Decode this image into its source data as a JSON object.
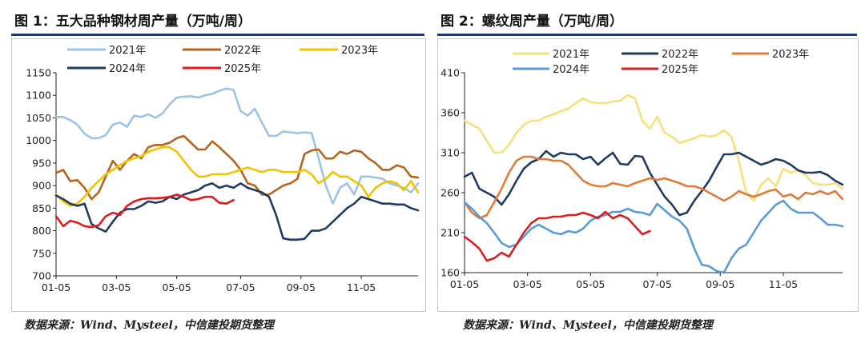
{
  "charts": [
    {
      "title": "图 1：五大品种钢材周产量（万吨/周）",
      "source": "数据来源：Wind、Mysteel，中信建投期货整理"
    },
    {
      "title": "图 2：螺纹周产量（万吨/周）",
      "source": "数据来源：Wind、Mysteel，中信建投期货整理"
    }
  ],
  "chart_data": [
    {
      "type": "line",
      "title": "图 1：五大品种钢材周产量（万吨/周）",
      "xlabel": "",
      "ylabel": "",
      "x_ticks": [
        "01-05",
        "03-05",
        "05-05",
        "07-05",
        "09-05",
        "11-05"
      ],
      "y_ticks": [
        700,
        750,
        800,
        850,
        900,
        950,
        1000,
        1050,
        1100,
        1150
      ],
      "ylim": [
        700,
        1150
      ],
      "x_range_weeks": [
        1,
        52
      ],
      "grid": false,
      "legend_position": "top",
      "series": [
        {
          "name": "2021年",
          "color": "#9dc3e6",
          "x": [
            1,
            2,
            3,
            4,
            5,
            6,
            7,
            8,
            9,
            10,
            11,
            12,
            13,
            14,
            15,
            16,
            17,
            18,
            19,
            20,
            21,
            22,
            23,
            24,
            25,
            26,
            27,
            28,
            29,
            30,
            31,
            32,
            33,
            34,
            35,
            36,
            37,
            38,
            39,
            40,
            41,
            42,
            43,
            44,
            45,
            46,
            47,
            48,
            49,
            50,
            51,
            52
          ],
          "values": [
            1052,
            1052,
            1045,
            1035,
            1015,
            1005,
            1005,
            1012,
            1035,
            1040,
            1030,
            1055,
            1052,
            1058,
            1050,
            1060,
            1080,
            1095,
            1097,
            1098,
            1095,
            1100,
            1103,
            1110,
            1115,
            1112,
            1065,
            1055,
            1070,
            1040,
            1010,
            1010,
            1020,
            1018,
            1016,
            1018,
            1016,
            960,
            900,
            860,
            895,
            905,
            880,
            920,
            920,
            918,
            915,
            905,
            900,
            895,
            885,
            905
          ]
        },
        {
          "name": "2022年",
          "color": "#b5651d",
          "x": [
            1,
            2,
            3,
            4,
            5,
            6,
            7,
            8,
            9,
            10,
            11,
            12,
            13,
            14,
            15,
            16,
            17,
            18,
            19,
            20,
            21,
            22,
            23,
            24,
            25,
            26,
            27,
            28,
            29,
            30,
            31,
            32,
            33,
            34,
            35,
            36,
            37,
            38,
            39,
            40,
            41,
            42,
            43,
            44,
            45,
            46,
            47,
            48,
            49,
            50,
            51,
            52
          ],
          "values": [
            928,
            935,
            910,
            912,
            895,
            870,
            885,
            920,
            955,
            935,
            955,
            970,
            960,
            985,
            990,
            990,
            995,
            1005,
            1010,
            995,
            980,
            980,
            998,
            985,
            970,
            955,
            935,
            905,
            900,
            880,
            880,
            890,
            900,
            905,
            915,
            970,
            978,
            980,
            960,
            960,
            975,
            970,
            978,
            975,
            960,
            950,
            935,
            935,
            945,
            940,
            920,
            918
          ]
        },
        {
          "name": "2023年",
          "color": "#f2c300",
          "x": [
            1,
            2,
            3,
            4,
            5,
            6,
            7,
            8,
            9,
            10,
            11,
            12,
            13,
            14,
            15,
            16,
            17,
            18,
            19,
            20,
            21,
            22,
            23,
            24,
            25,
            26,
            27,
            28,
            29,
            30,
            31,
            32,
            33,
            34,
            35,
            36,
            37,
            38,
            39,
            40,
            41,
            42,
            43,
            44,
            45,
            46,
            47,
            48,
            49,
            50,
            51,
            52
          ],
          "values": [
            880,
            865,
            855,
            860,
            875,
            895,
            910,
            925,
            935,
            945,
            955,
            960,
            965,
            975,
            980,
            985,
            985,
            975,
            955,
            935,
            920,
            920,
            925,
            925,
            925,
            930,
            935,
            940,
            935,
            930,
            935,
            935,
            930,
            930,
            930,
            935,
            925,
            905,
            915,
            930,
            920,
            920,
            910,
            900,
            875,
            895,
            905,
            910,
            905,
            890,
            910,
            885
          ]
        },
        {
          "name": "2024年",
          "color": "#1f3b63",
          "x": [
            1,
            2,
            3,
            4,
            5,
            6,
            7,
            8,
            9,
            10,
            11,
            12,
            13,
            14,
            15,
            16,
            17,
            18,
            19,
            20,
            21,
            22,
            23,
            24,
            25,
            26,
            27,
            28,
            29,
            30,
            31,
            32,
            33,
            34,
            35,
            36,
            37,
            38,
            39,
            40,
            41,
            42,
            43,
            44,
            45,
            46,
            47,
            48,
            49,
            50,
            51,
            52
          ],
          "values": [
            878,
            870,
            860,
            855,
            860,
            815,
            805,
            798,
            820,
            840,
            848,
            848,
            855,
            865,
            862,
            865,
            875,
            870,
            880,
            885,
            890,
            900,
            905,
            895,
            900,
            895,
            905,
            895,
            890,
            885,
            875,
            835,
            783,
            780,
            780,
            782,
            800,
            800,
            805,
            820,
            835,
            850,
            860,
            875,
            870,
            865,
            860,
            860,
            858,
            858,
            850,
            845
          ]
        },
        {
          "name": "2025年",
          "color": "#e0191b",
          "x": [
            1,
            2,
            3,
            4,
            5,
            6,
            7,
            8,
            9,
            10,
            11,
            12,
            13,
            14,
            15,
            16,
            17,
            18,
            19,
            20,
            21,
            22,
            23,
            24,
            25,
            26
          ],
          "values": [
            832,
            810,
            822,
            818,
            810,
            808,
            812,
            832,
            840,
            835,
            855,
            865,
            870,
            872,
            872,
            873,
            875,
            880,
            875,
            868,
            870,
            875,
            875,
            862,
            860,
            868
          ]
        }
      ]
    },
    {
      "type": "line",
      "title": "图 2：螺纹周产量（万吨/周）",
      "xlabel": "",
      "ylabel": "",
      "x_ticks": [
        "01-05",
        "03-05",
        "05-05",
        "07-05",
        "09-05",
        "11-05"
      ],
      "y_ticks": [
        160,
        210,
        260,
        310,
        360,
        410
      ],
      "ylim": [
        160,
        410
      ],
      "x_range_weeks": [
        1,
        52
      ],
      "grid": false,
      "legend_position": "top",
      "series": [
        {
          "name": "2021年",
          "color": "#f5e07a",
          "x": [
            1,
            2,
            3,
            4,
            5,
            6,
            7,
            8,
            9,
            10,
            11,
            12,
            13,
            14,
            15,
            16,
            17,
            18,
            19,
            20,
            21,
            22,
            23,
            24,
            25,
            26,
            27,
            28,
            29,
            30,
            31,
            32,
            33,
            34,
            35,
            36,
            37,
            38,
            39,
            40,
            41,
            42,
            43,
            44,
            45,
            46,
            47,
            48,
            49,
            50,
            51,
            52
          ],
          "values": [
            350,
            345,
            340,
            325,
            310,
            310,
            320,
            335,
            345,
            350,
            350,
            355,
            358,
            362,
            365,
            372,
            378,
            373,
            372,
            372,
            374,
            375,
            382,
            378,
            350,
            340,
            355,
            335,
            330,
            322,
            325,
            328,
            332,
            330,
            332,
            338,
            330,
            300,
            260,
            250,
            270,
            278,
            268,
            290,
            285,
            288,
            282,
            272,
            270,
            270,
            272,
            265
          ]
        },
        {
          "name": "2022年",
          "color": "#1f3b63",
          "x": [
            1,
            2,
            3,
            4,
            5,
            6,
            7,
            8,
            9,
            10,
            11,
            12,
            13,
            14,
            15,
            16,
            17,
            18,
            19,
            20,
            21,
            22,
            23,
            24,
            25,
            26,
            27,
            28,
            29,
            30,
            31,
            32,
            33,
            34,
            35,
            36,
            37,
            38,
            39,
            40,
            41,
            42,
            43,
            44,
            45,
            46,
            47,
            48,
            49,
            50,
            51,
            52
          ],
          "values": [
            280,
            285,
            265,
            260,
            255,
            245,
            258,
            275,
            290,
            298,
            302,
            312,
            305,
            310,
            308,
            308,
            302,
            305,
            295,
            303,
            310,
            296,
            295,
            306,
            305,
            285,
            270,
            255,
            245,
            232,
            235,
            250,
            262,
            275,
            292,
            308,
            308,
            310,
            305,
            300,
            295,
            298,
            302,
            300,
            295,
            288,
            285,
            285,
            286,
            282,
            275,
            270
          ]
        },
        {
          "name": "2023年",
          "color": "#e07b39",
          "x": [
            1,
            2,
            3,
            4,
            5,
            6,
            7,
            8,
            9,
            10,
            11,
            12,
            13,
            14,
            15,
            16,
            17,
            18,
            19,
            20,
            21,
            22,
            23,
            24,
            25,
            26,
            27,
            28,
            29,
            30,
            31,
            32,
            33,
            34,
            35,
            36,
            37,
            38,
            39,
            40,
            41,
            42,
            43,
            44,
            45,
            46,
            47,
            48,
            49,
            50,
            51,
            52
          ],
          "values": [
            248,
            235,
            228,
            232,
            248,
            265,
            285,
            300,
            305,
            305,
            302,
            302,
            300,
            300,
            295,
            285,
            275,
            270,
            268,
            268,
            272,
            270,
            268,
            272,
            275,
            278,
            276,
            278,
            275,
            272,
            268,
            268,
            265,
            260,
            255,
            250,
            255,
            262,
            258,
            255,
            258,
            262,
            264,
            255,
            258,
            252,
            260,
            258,
            262,
            258,
            262,
            252
          ]
        },
        {
          "name": "2024年",
          "color": "#5b9bd5",
          "x": [
            1,
            2,
            3,
            4,
            5,
            6,
            7,
            8,
            9,
            10,
            11,
            12,
            13,
            14,
            15,
            16,
            17,
            18,
            19,
            20,
            21,
            22,
            23,
            24,
            25,
            26,
            27,
            28,
            29,
            30,
            31,
            32,
            33,
            34,
            35,
            36,
            37,
            38,
            39,
            40,
            41,
            42,
            43,
            44,
            45,
            46,
            47,
            48,
            49,
            50,
            51,
            52
          ],
          "values": [
            248,
            240,
            230,
            222,
            210,
            197,
            192,
            195,
            205,
            215,
            220,
            215,
            210,
            208,
            212,
            210,
            215,
            225,
            230,
            232,
            236,
            236,
            240,
            236,
            235,
            232,
            246,
            238,
            230,
            225,
            215,
            190,
            170,
            168,
            162,
            160,
            178,
            190,
            195,
            210,
            225,
            235,
            245,
            250,
            240,
            235,
            235,
            235,
            228,
            220,
            220,
            218
          ]
        },
        {
          "name": "2025年",
          "color": "#d62020",
          "x": [
            1,
            2,
            3,
            4,
            5,
            6,
            7,
            8,
            9,
            10,
            11,
            12,
            13,
            14,
            15,
            16,
            17,
            18,
            19,
            20,
            21,
            22,
            23,
            24,
            25,
            26
          ],
          "values": [
            205,
            198,
            190,
            175,
            178,
            185,
            180,
            195,
            210,
            222,
            228,
            228,
            230,
            230,
            232,
            232,
            235,
            232,
            228,
            236,
            228,
            232,
            228,
            218,
            208,
            212
          ]
        }
      ]
    }
  ]
}
